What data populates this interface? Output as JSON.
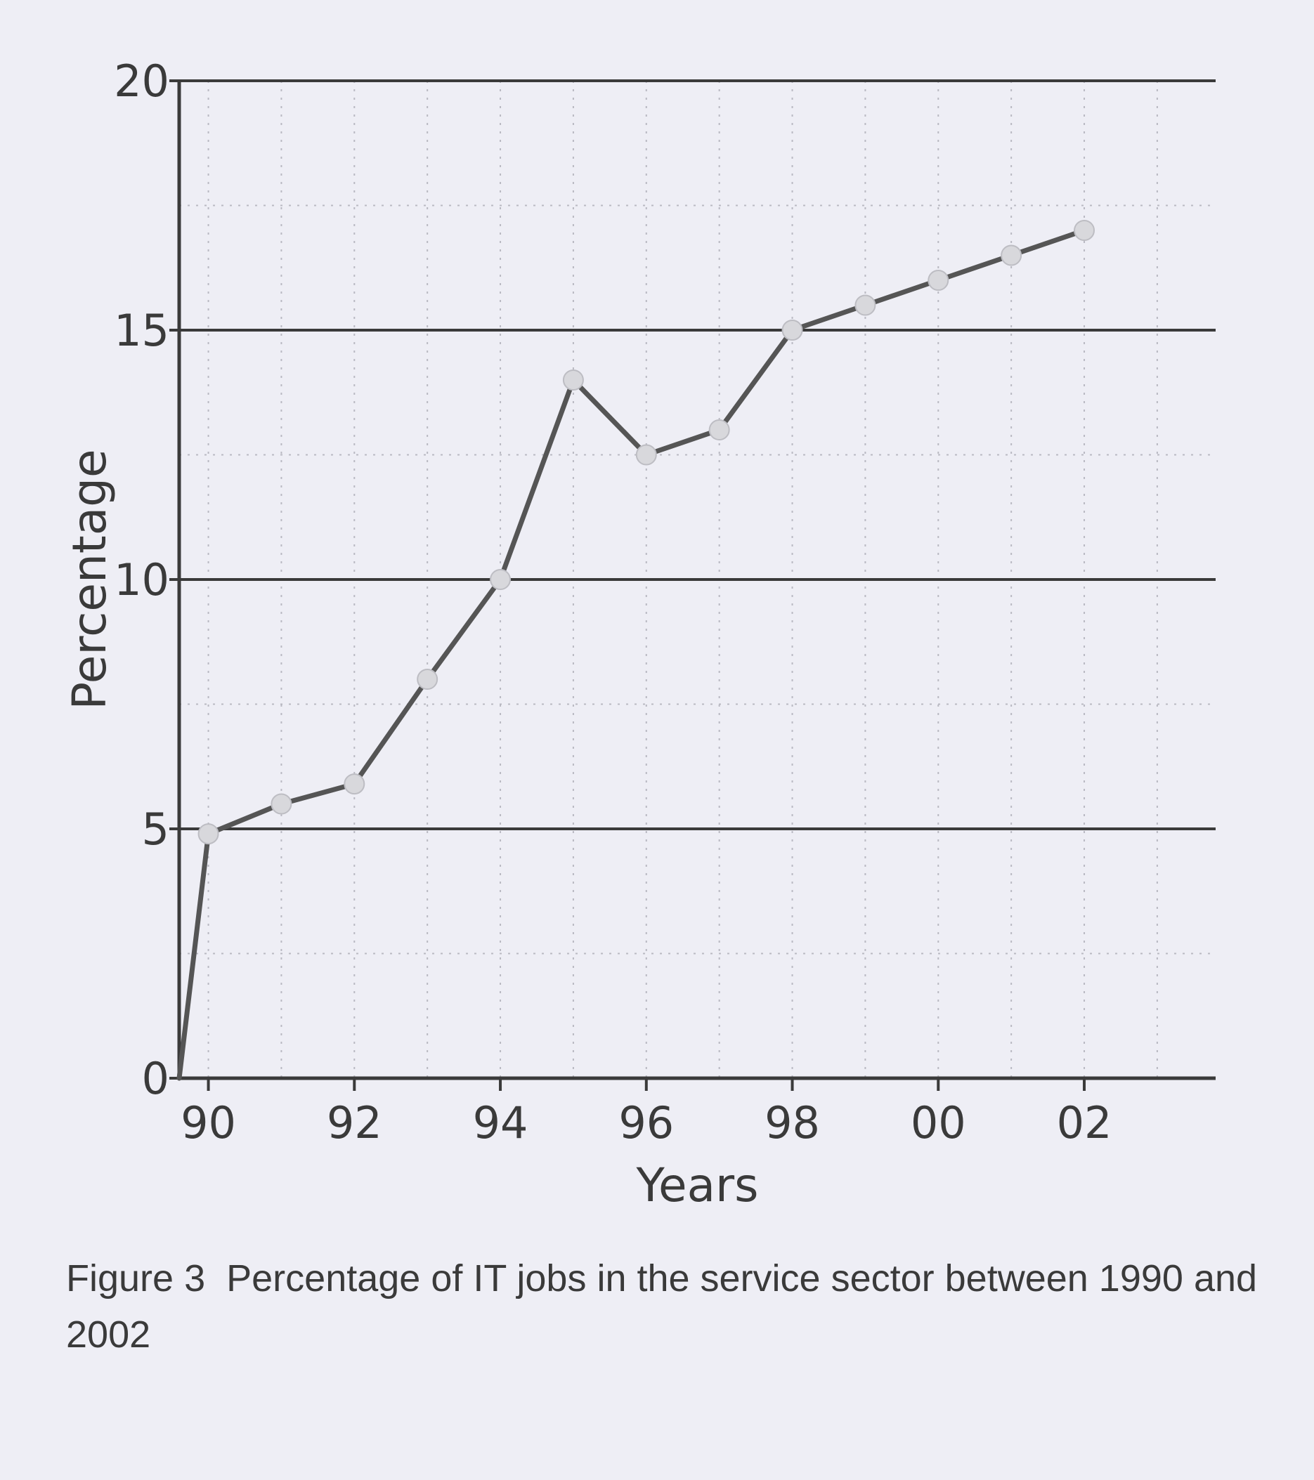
{
  "caption": {
    "label": "Figure 3",
    "text": "Percentage of IT jobs in the service sector between 1990 and 2002"
  },
  "chart_data": {
    "type": "line",
    "title": "",
    "xlabel": "Years",
    "ylabel": "Percentage",
    "x": [
      1989.6,
      1990,
      1991,
      1992,
      1993,
      1994,
      1995,
      1996,
      1997,
      1998,
      1999,
      2000,
      2001,
      2002
    ],
    "xlim": [
      1989.6,
      2003.8
    ],
    "x_ticks": [
      1990,
      1992,
      1994,
      1996,
      1998,
      2000,
      2002
    ],
    "x_tick_labels": [
      "90",
      "92",
      "94",
      "96",
      "98",
      "00",
      "02"
    ],
    "ylim": [
      0,
      20
    ],
    "y_ticks": [
      0,
      5,
      10,
      15,
      20
    ],
    "y_tick_labels": [
      "0",
      "5",
      "10",
      "15",
      "20"
    ],
    "series": [
      {
        "values": [
          0,
          4.9,
          5.5,
          5.9,
          8,
          10,
          14,
          12.5,
          13,
          15,
          15.5,
          16,
          16.5,
          17
        ]
      }
    ],
    "grid": "major horizontal lines solid, minor grid dotted",
    "colors": {
      "line": "#555555",
      "marker": "#d8d8dc",
      "axis": "#3a3a3a",
      "background": "#eeeef5"
    }
  }
}
